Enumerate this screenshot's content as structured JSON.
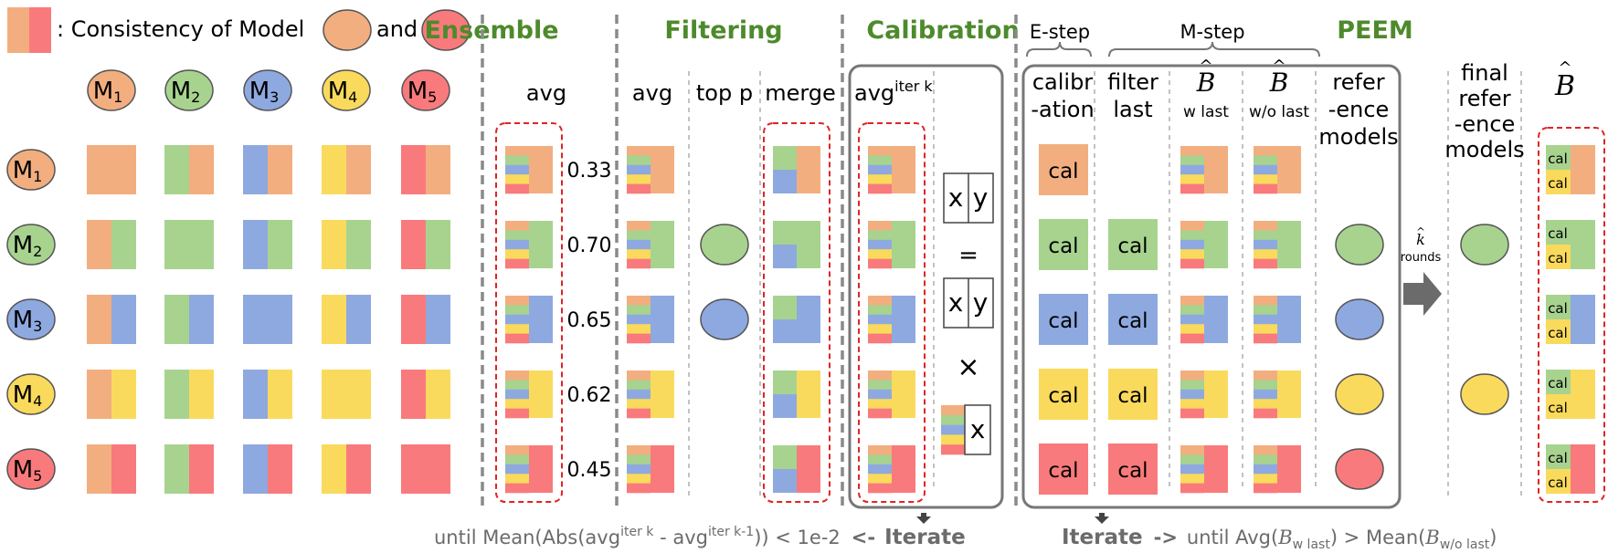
{
  "colors": {
    "m1": "#F2AE7F",
    "m2": "#A7D38F",
    "m3": "#8EA9E0",
    "m4": "#FADA5C",
    "m5": "#F97A7C",
    "section_green": "#4E8A2C",
    "red_dash": "#E02424",
    "grey_text": "#6B6B6B"
  },
  "legend": {
    "colon": ": Consistency of Model",
    "and": "and"
  },
  "models": [
    {
      "id": "m1",
      "label": "M",
      "sub": "1"
    },
    {
      "id": "m2",
      "label": "M",
      "sub": "2"
    },
    {
      "id": "m3",
      "label": "M",
      "sub": "3"
    },
    {
      "id": "m4",
      "label": "M",
      "sub": "4"
    },
    {
      "id": "m5",
      "label": "M",
      "sub": "5"
    }
  ],
  "sections": {
    "ensemble": "Ensemble",
    "filtering": "Filtering",
    "calibration": "Calibration",
    "peem": "PEEM"
  },
  "headers": {
    "avg": "avg",
    "filter_avg": "avg",
    "top_p": "top p",
    "merge": "merge",
    "avg_iter": "avg",
    "avg_iter_sup": "iter k",
    "estep": "E-step",
    "mstep": "M-step",
    "calibration": [
      "calibr",
      "-ation"
    ],
    "filter_last": [
      "filter",
      "last"
    ],
    "b_hat": "B",
    "w_last": "w last",
    "wo_last": "w/o last",
    "reference_models": [
      "refer",
      "-ence",
      "models"
    ],
    "final_reference_models": [
      "final",
      "refer",
      "-ence",
      "models"
    ],
    "final_b": "B"
  },
  "ensemble_values": [
    "0.33",
    "0.70",
    "0.65",
    "0.62",
    "0.45"
  ],
  "cal_label": "cal",
  "calibration_eq": {
    "x": "x",
    "y": "y",
    "eq": "=",
    "times": "×"
  },
  "rounds": {
    "k": "k",
    "label": "rounds"
  },
  "bottom": {
    "left_prefix": "until Mean(Abs(avg",
    "left_sup1": "iter k",
    "left_mid": " - avg",
    "left_sup2": "iter k-1",
    "left_suffix": ")) < 1e-2",
    "left_arrow": "<-",
    "iterate": "Iterate",
    "right_arrow": "->",
    "right_until": "until Avg(",
    "right_b": "B",
    "right_sub1": "w last",
    "right_gt": ") > Mean(",
    "right_sub2": "w/o last",
    "right_close": ")"
  }
}
